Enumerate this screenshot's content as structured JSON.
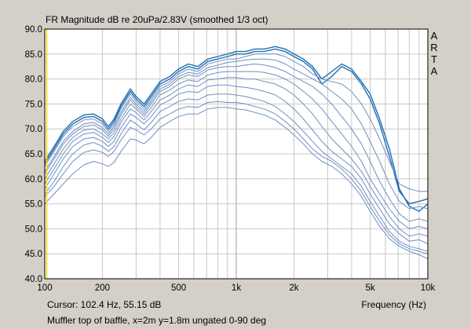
{
  "chart_data": {
    "type": "line",
    "title": "FR Magnitude dB re 20uPa/2.83V (smoothed 1/3 oct)",
    "xlabel": "Frequency (Hz)",
    "ylabel": "",
    "x_scale": "log",
    "xlim": [
      100,
      10000
    ],
    "ylim": [
      40,
      90
    ],
    "grid": true,
    "y_ticks": [
      "90.0",
      "85.0",
      "80.0",
      "75.0",
      "70.0",
      "65.0",
      "60.0",
      "55.0",
      "50.0",
      "45.0",
      "40.0"
    ],
    "x_ticks": [
      {
        "value": 100,
        "label": "100"
      },
      {
        "value": 200,
        "label": "200"
      },
      {
        "value": 500,
        "label": "500"
      },
      {
        "value": 1000,
        "label": "1k"
      },
      {
        "value": 2000,
        "label": "2k"
      },
      {
        "value": 5000,
        "label": "5k"
      },
      {
        "value": 10000,
        "label": "10k"
      }
    ],
    "branding": "ARTA",
    "cursor_text": "Cursor: 102.4 Hz, 55.15 dB",
    "caption": "Muffler top of baffle, x=2m y=1.8m ungated 0-90 deg",
    "cursor_x": 102.4,
    "colors": {
      "background": "#d4d0c8",
      "plot_area": "#ffffff",
      "grid": "#c8c8c8",
      "curve_main": "#1f6fb3",
      "curve_secondary": "#6f8fc0",
      "cursor": "#ffd700"
    },
    "x": [
      100,
      112,
      125,
      140,
      160,
      180,
      200,
      215,
      230,
      250,
      280,
      300,
      330,
      360,
      400,
      450,
      500,
      560,
      630,
      710,
      800,
      900,
      1000,
      1120,
      1250,
      1400,
      1600,
      1800,
      2000,
      2240,
      2500,
      2800,
      3150,
      3550,
      4000,
      4500,
      5000,
      5600,
      6300,
      7100,
      8000,
      9000,
      10000
    ],
    "series": [
      {
        "values": [
          63.5,
          66.5,
          69.5,
          71.5,
          72.8,
          73.0,
          72.0,
          70.5,
          72.0,
          75.0,
          78.0,
          76.5,
          75.0,
          77.0,
          79.5,
          80.5,
          82.0,
          83.0,
          82.5,
          84.0,
          84.5,
          85.0,
          85.5,
          85.5,
          86.0,
          86.0,
          86.5,
          86.0,
          85.0,
          84.0,
          82.5,
          80.0,
          81.5,
          83.0,
          82.0,
          79.5,
          77.0,
          72.0,
          66.0,
          58.0,
          54.5,
          53.5,
          55.0
        ]
      },
      {
        "values": [
          63.0,
          66.0,
          69.0,
          71.0,
          72.3,
          72.5,
          71.5,
          70.0,
          71.5,
          74.5,
          77.5,
          76.0,
          74.5,
          76.5,
          79.0,
          80.0,
          81.5,
          82.5,
          82.0,
          83.5,
          84.0,
          84.5,
          85.0,
          85.0,
          85.5,
          85.5,
          86.0,
          85.5,
          84.5,
          83.5,
          82.0,
          79.0,
          80.5,
          82.5,
          81.5,
          79.0,
          76.0,
          71.0,
          64.5,
          57.5,
          55.0,
          55.5,
          56.0
        ]
      },
      {
        "values": [
          62.5,
          65.5,
          68.5,
          70.5,
          71.8,
          72.0,
          71.0,
          69.5,
          71.0,
          74.0,
          77.0,
          75.5,
          74.0,
          76.0,
          78.5,
          79.5,
          81.0,
          82.0,
          81.5,
          83.0,
          83.5,
          84.0,
          84.0,
          84.5,
          85.0,
          85.0,
          85.0,
          84.5,
          83.5,
          82.5,
          81.0,
          80.0,
          79.5,
          79.0,
          77.5,
          75.0,
          72.0,
          68.0,
          63.5,
          59.0,
          58.0,
          57.5,
          57.5
        ]
      },
      {
        "values": [
          61.5,
          64.5,
          67.5,
          69.5,
          71.0,
          71.3,
          70.3,
          69.0,
          70.5,
          73.3,
          76.3,
          75.0,
          73.5,
          75.5,
          78.0,
          79.0,
          80.5,
          81.3,
          81.0,
          82.3,
          82.8,
          83.3,
          83.5,
          83.8,
          84.0,
          84.0,
          83.8,
          83.0,
          82.0,
          81.0,
          80.0,
          79.0,
          77.5,
          76.0,
          74.0,
          71.0,
          67.5,
          63.5,
          59.0,
          55.5,
          54.0,
          54.5,
          54.0
        ]
      },
      {
        "values": [
          61.0,
          64.0,
          67.0,
          69.0,
          70.5,
          70.8,
          69.8,
          68.5,
          70.0,
          72.8,
          75.8,
          74.5,
          73.0,
          75.0,
          77.5,
          78.5,
          80.0,
          80.8,
          80.5,
          81.8,
          82.3,
          82.5,
          82.5,
          82.8,
          83.0,
          82.8,
          82.3,
          81.5,
          80.5,
          79.5,
          78.5,
          77.0,
          75.0,
          72.5,
          70.0,
          67.0,
          63.5,
          59.5,
          56.0,
          53.0,
          51.5,
          52.0,
          51.5
        ]
      },
      {
        "values": [
          60.0,
          63.0,
          66.0,
          68.3,
          69.8,
          70.0,
          69.0,
          68.0,
          69.3,
          72.0,
          75.0,
          74.0,
          72.5,
          74.3,
          76.8,
          77.8,
          79.0,
          79.8,
          79.5,
          80.8,
          81.3,
          81.5,
          81.5,
          81.5,
          81.5,
          81.3,
          80.8,
          80.0,
          79.0,
          77.5,
          76.0,
          74.0,
          71.5,
          69.0,
          66.5,
          63.5,
          60.0,
          57.0,
          54.0,
          51.5,
          50.0,
          50.5,
          50.0
        ]
      },
      {
        "values": [
          59.0,
          62.0,
          65.0,
          67.5,
          69.0,
          69.3,
          68.3,
          67.3,
          68.5,
          71.3,
          74.0,
          73.3,
          71.8,
          73.5,
          75.8,
          76.8,
          78.0,
          78.8,
          78.5,
          79.8,
          80.0,
          80.3,
          80.3,
          80.0,
          80.0,
          79.5,
          79.0,
          78.0,
          76.8,
          75.0,
          73.0,
          70.5,
          68.0,
          66.0,
          64.0,
          61.5,
          58.5,
          55.5,
          52.5,
          50.0,
          48.5,
          49.0,
          48.5
        ]
      },
      {
        "values": [
          58.0,
          61.0,
          64.0,
          66.5,
          68.0,
          68.3,
          67.5,
          66.5,
          67.5,
          70.3,
          73.0,
          72.3,
          71.0,
          72.5,
          74.8,
          75.8,
          77.0,
          77.5,
          77.3,
          78.5,
          78.8,
          78.8,
          78.5,
          78.3,
          78.0,
          77.5,
          76.8,
          75.5,
          74.0,
          72.0,
          69.8,
          67.5,
          65.5,
          64.0,
          62.5,
          60.0,
          57.0,
          54.0,
          51.0,
          49.0,
          47.5,
          47.8,
          47.0
        ]
      },
      {
        "values": [
          57.0,
          59.5,
          62.5,
          65.0,
          66.8,
          67.3,
          66.5,
          65.5,
          66.5,
          69.0,
          71.8,
          71.0,
          69.8,
          71.3,
          73.5,
          74.5,
          75.5,
          76.0,
          75.8,
          76.8,
          77.0,
          77.0,
          76.8,
          76.5,
          76.0,
          75.5,
          74.5,
          73.0,
          71.5,
          69.5,
          67.5,
          65.5,
          64.0,
          62.5,
          61.0,
          58.5,
          55.5,
          52.5,
          49.5,
          47.5,
          46.5,
          46.0,
          45.5
        ]
      },
      {
        "values": [
          56.5,
          58.5,
          61.0,
          63.5,
          65.3,
          65.8,
          65.3,
          64.5,
          65.5,
          67.8,
          70.3,
          69.8,
          68.8,
          70.0,
          72.0,
          73.0,
          74.0,
          74.5,
          74.3,
          75.3,
          75.5,
          75.3,
          75.3,
          75.0,
          74.5,
          74.0,
          73.0,
          71.5,
          70.0,
          68.0,
          66.0,
          64.5,
          63.5,
          62.0,
          60.0,
          57.5,
          54.5,
          51.5,
          48.8,
          47.0,
          46.0,
          45.5,
          45.0
        ]
      },
      {
        "values": [
          55.0,
          57.0,
          59.0,
          61.0,
          62.8,
          63.5,
          63.0,
          62.5,
          63.3,
          65.5,
          68.0,
          67.8,
          67.0,
          68.3,
          70.3,
          71.5,
          72.5,
          73.0,
          73.0,
          74.0,
          74.3,
          74.3,
          74.0,
          73.8,
          73.3,
          72.8,
          71.8,
          70.3,
          68.8,
          67.0,
          65.0,
          63.5,
          62.5,
          61.0,
          59.0,
          56.5,
          53.5,
          50.5,
          48.0,
          46.5,
          45.5,
          44.8,
          44.0
        ]
      }
    ]
  }
}
